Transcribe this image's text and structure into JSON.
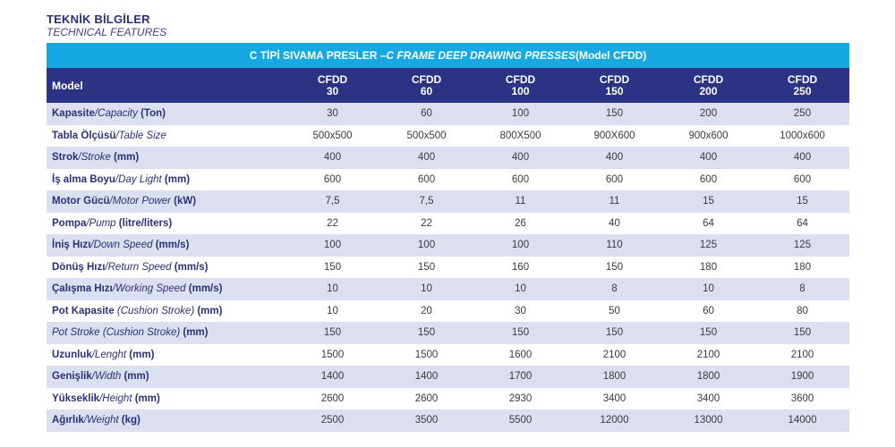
{
  "heading": {
    "title_tr": "TEKNİK BİLGİLER",
    "title_en": "TECHNICAL FEATURES"
  },
  "banner": {
    "part1": "C TİPİ SIVAMA PRESLER – ",
    "part2": "C FRAME DEEP DRAWING PRESSES",
    "part3": " (Model CFDD)"
  },
  "header": {
    "label": "Model",
    "columns": [
      {
        "l1": "CFDD",
        "l2": "30"
      },
      {
        "l1": "CFDD",
        "l2": "60"
      },
      {
        "l1": "CFDD",
        "l2": "100"
      },
      {
        "l1": "CFDD",
        "l2": "150"
      },
      {
        "l1": "CFDD",
        "l2": "200"
      },
      {
        "l1": "CFDD",
        "l2": "250"
      }
    ]
  },
  "rows": [
    {
      "tr": "Kapasite",
      "en": "/Capacity",
      "unit": " (Ton)",
      "values": [
        "30",
        "60",
        "100",
        "150",
        "200",
        "250"
      ]
    },
    {
      "tr": "Tabla Ölçüsü",
      "en": "/Table Size",
      "unit": "",
      "values": [
        "500x500",
        "500x500",
        "800X500",
        "900X600",
        "900x600",
        "1000x600"
      ]
    },
    {
      "tr": "Strok",
      "en": "/Stroke",
      "unit": " (mm)",
      "values": [
        "400",
        "400",
        "400",
        "400",
        "400",
        "400"
      ]
    },
    {
      "tr": "İş alma Boyu",
      "en": "/Day Light",
      "unit": " (mm)",
      "values": [
        "600",
        "600",
        "600",
        "600",
        "600",
        "600"
      ]
    },
    {
      "tr": "Motor Gücü",
      "en": "/Motor Power",
      "unit": " (kW)",
      "values": [
        "7,5",
        "7,5",
        "11",
        "11",
        "15",
        "15"
      ]
    },
    {
      "tr": "Pompa",
      "en": "/Pump",
      "unit": " (litre/liters)",
      "values": [
        "22",
        "22",
        "26",
        "40",
        "64",
        "64"
      ]
    },
    {
      "tr": "İniş Hızı",
      "en": "/Down Speed",
      "unit": " (mm/s)",
      "values": [
        "100",
        "100",
        "100",
        "110",
        "125",
        "125"
      ]
    },
    {
      "tr": "Dönüş Hızı",
      "en": "/Return Speed",
      "unit": " (mm/s)",
      "values": [
        "150",
        "150",
        "160",
        "150",
        "180",
        "180"
      ]
    },
    {
      "tr": "Çalışma Hızı",
      "en": "/Working Speed",
      "unit": " (mm/s)",
      "values": [
        "10",
        "10",
        "10",
        "8",
        "10",
        "8"
      ]
    },
    {
      "tr": "Pot Kapasite",
      "en": " (Cushion Stroke)",
      "unit": " (mm)",
      "values": [
        "10",
        "20",
        "30",
        "50",
        "60",
        "80"
      ]
    },
    {
      "tr": "",
      "en": "Pot Stroke (Cushion Stroke)",
      "unit": " (mm)",
      "values": [
        "150",
        "150",
        "150",
        "150",
        "150",
        "150"
      ]
    },
    {
      "tr": "Uzunluk",
      "en": "/Lenght",
      "unit": " (mm)",
      "values": [
        "1500",
        "1500",
        "1600",
        "2100",
        "2100",
        "2100"
      ]
    },
    {
      "tr": "Genişlik",
      "en": "/Width",
      "unit": " (mm)",
      "values": [
        "1400",
        "1400",
        "1700",
        "1800",
        "1800",
        "1900"
      ]
    },
    {
      "tr": "Yükseklik",
      "en": "/Height",
      "unit": " (mm)",
      "values": [
        "2600",
        "2600",
        "2930",
        "3400",
        "3400",
        "3600"
      ]
    },
    {
      "tr": "Ağırlık",
      "en": "/Weight",
      "unit": " (kg)",
      "values": [
        "2500",
        "3500",
        "5500",
        "12000",
        "13000",
        "14000"
      ]
    }
  ],
  "colors": {
    "banner": "#16a9e1",
    "header": "#2d3384",
    "stripe": "#dcdfef",
    "label_text": "#2b2f7a"
  }
}
